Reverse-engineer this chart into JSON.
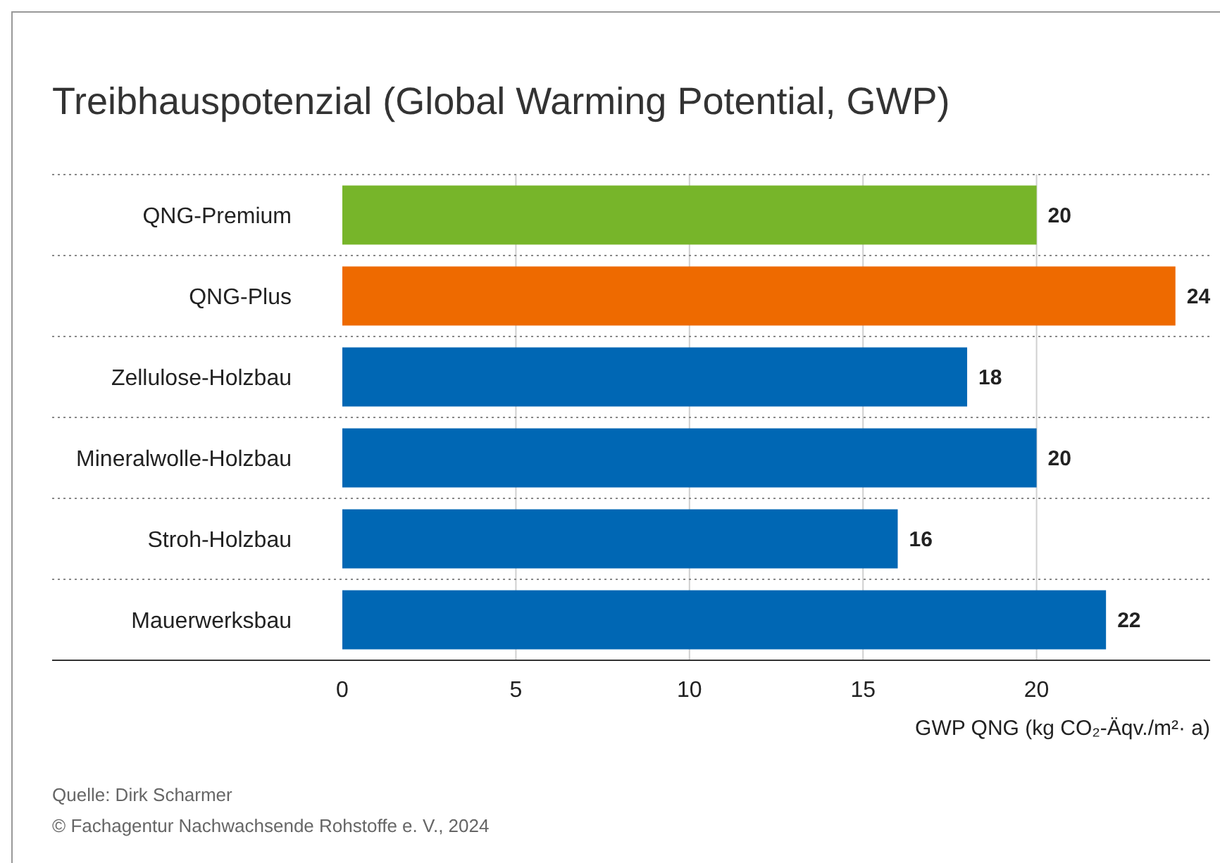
{
  "chart_data": {
    "type": "bar",
    "orientation": "horizontal",
    "title": "Treibhauspotenzial (Global Warming Potential, GWP)",
    "categories": [
      "QNG-Premium",
      "QNG-Plus",
      "Zellulose-Holzbau",
      "Mineralwolle-Holzbau",
      "Stroh-Holzbau",
      "Mauerwerksbau"
    ],
    "values": [
      20,
      24,
      18,
      20,
      16,
      22
    ],
    "colors": [
      "#77b52a",
      "#ee6a00",
      "#0067b4",
      "#0067b4",
      "#0067b4",
      "#0067b4"
    ],
    "xlim": [
      0,
      25
    ],
    "xticks": [
      0,
      5,
      10,
      15,
      20
    ],
    "xlabel": "GWP QNG (kg CO₂-Äqv./m²· a)",
    "grid": "x",
    "data_labels": true,
    "annotations": [
      "Quelle: Dirk Scharmer",
      "© Fachagentur Nachwachsende Rohstoffe e. V., 2024"
    ]
  }
}
